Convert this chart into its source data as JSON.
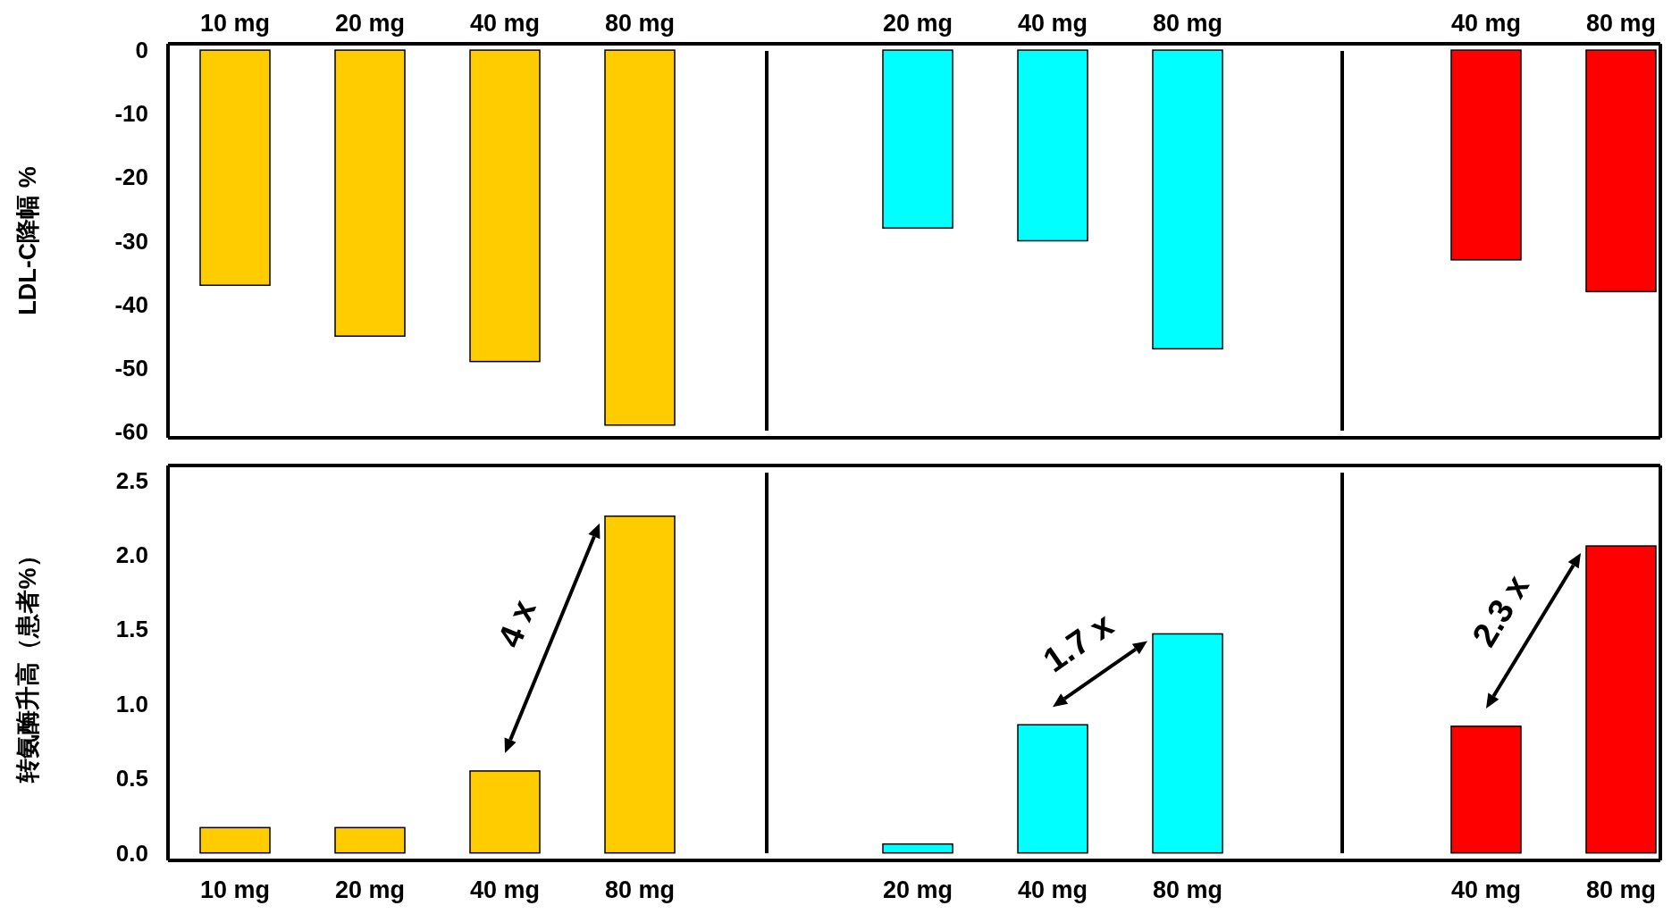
{
  "chart_data": [
    {
      "type": "bar",
      "ylabel": "LDL-C降幅 %",
      "categories": [
        "10 mg",
        "20 mg",
        "40 mg",
        "80 mg"
      ],
      "values": [
        -37,
        -45,
        -49,
        -59
      ],
      "color": "#ffcc00",
      "ylim": [
        -61,
        1
      ],
      "yticks": [
        0,
        -10,
        -20,
        -30,
        -40,
        -50,
        -60
      ]
    },
    {
      "type": "bar",
      "categories": [
        "20 mg",
        "40 mg",
        "80 mg"
      ],
      "values": [
        -28,
        -30,
        -47
      ],
      "color": "#00ffff",
      "ylim": [
        -61,
        1
      ],
      "tick_labels": "x"
    },
    {
      "type": "bar",
      "categories": [
        "40 mg",
        "80 mg"
      ],
      "values": [
        -33,
        -38
      ],
      "color": "#ff0000",
      "ylim": [
        -61,
        1
      ],
      "tick_labels": "x"
    },
    {
      "type": "bar",
      "ylabel": "转氨酶升高（患者%）",
      "categories": [
        "10 mg",
        "20 mg",
        "40 mg",
        "80 mg"
      ],
      "values": [
        0.17,
        0.17,
        0.55,
        2.26
      ],
      "color": "#ffcc00",
      "ylim": [
        -0.05,
        2.6
      ],
      "yticks": [
        {
          "value": 0,
          "label": "0.0"
        },
        0.5,
        {
          "value": 1,
          "label": "1.0"
        },
        1.5,
        {
          "value": 2,
          "label": "2.0"
        },
        2.5
      ],
      "annotations": [
        "4 x"
      ]
    },
    {
      "type": "bar",
      "categories": [
        "20 mg",
        "40 mg",
        "80 mg"
      ],
      "values": [
        0.06,
        0.86,
        1.47
      ],
      "color": "#00ffff",
      "ylim": [
        -0.05,
        2.6
      ],
      "tick_labels": "x",
      "annotations": [
        "1.7 x"
      ]
    },
    {
      "type": "bar",
      "categories": [
        "40 mg",
        "80 mg"
      ],
      "values": [
        0.85,
        2.06
      ],
      "color": "#ff0000",
      "ylim": [
        -0.05,
        2.6
      ],
      "tick_labels": "x",
      "annotations": [
        "2.3 x"
      ]
    }
  ]
}
